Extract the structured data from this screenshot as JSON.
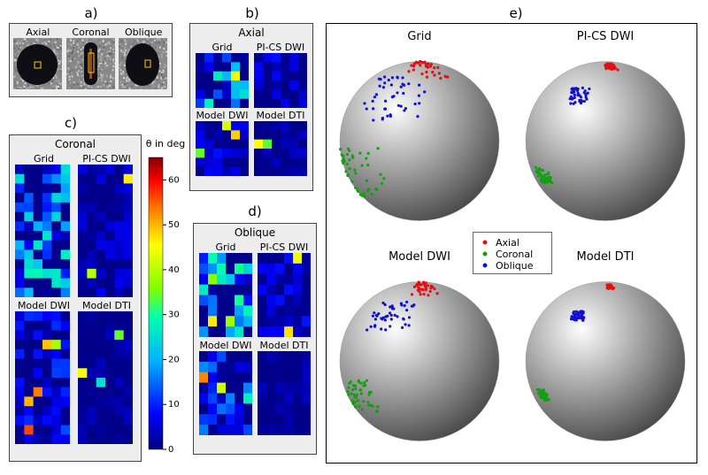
{
  "labels": {
    "a": "a)",
    "b": "b)",
    "c": "c)",
    "d": "d)",
    "e": "e)"
  },
  "panel_a": {
    "titles": [
      "Axial",
      "Coronal",
      "Oblique"
    ],
    "bg": "#888888",
    "disc_fill": "#0e0e14",
    "roi_stroke": "#ffcc00"
  },
  "colormap": {
    "title": "θ in deg",
    "stops": [
      {
        "p": 0.0,
        "c": "#00007f"
      },
      {
        "p": 0.12,
        "c": "#0000ff"
      },
      {
        "p": 0.3,
        "c": "#00b0ff"
      },
      {
        "p": 0.45,
        "c": "#00ffb0"
      },
      {
        "p": 0.55,
        "c": "#80ff00"
      },
      {
        "p": 0.7,
        "c": "#ffff00"
      },
      {
        "p": 0.82,
        "c": "#ff8000"
      },
      {
        "p": 0.92,
        "c": "#ff0000"
      },
      {
        "p": 1.0,
        "c": "#7f0000"
      }
    ],
    "tmin": 0,
    "tmax": 65,
    "ticks": [
      0,
      10,
      20,
      30,
      40,
      50,
      60
    ]
  },
  "panel_b": {
    "title": "Axial",
    "rows": 6,
    "cols": 6,
    "subpanels": [
      {
        "name": "Grid",
        "scale": 1.0,
        "noise": 0.4
      },
      {
        "name": "PI-CS DWI",
        "scale": 0.3,
        "noise": 0.1
      },
      {
        "name": "Model DWI",
        "scale": 0.32,
        "noise": 0.1
      },
      {
        "name": "Model DTI",
        "scale": 0.18,
        "noise": 0.05
      }
    ]
  },
  "panel_c": {
    "title": "Coronal",
    "rows": 14,
    "cols": 6,
    "subpanels": [
      {
        "name": "Grid",
        "scale": 0.8,
        "noise": 0.35
      },
      {
        "name": "PI-CS DWI",
        "scale": 0.25,
        "noise": 0.08
      },
      {
        "name": "Model DWI",
        "scale": 0.4,
        "noise": 0.15
      },
      {
        "name": "Model DTI",
        "scale": 0.15,
        "noise": 0.05
      }
    ]
  },
  "panel_d": {
    "title": "Oblique",
    "rows": 8,
    "cols": 6,
    "subpanels": [
      {
        "name": "Grid",
        "scale": 1.3,
        "noise": 0.5
      },
      {
        "name": "PI-CS DWI",
        "scale": 0.35,
        "noise": 0.1
      },
      {
        "name": "Model DWI",
        "scale": 0.55,
        "noise": 0.2
      },
      {
        "name": "Model DTI",
        "scale": 0.15,
        "noise": 0.05
      }
    ]
  },
  "panel_e": {
    "titles": [
      "Grid",
      "PI-CS DWI",
      "Model DWI",
      "Model DTI"
    ],
    "spreads": [
      1.0,
      0.35,
      0.7,
      0.22
    ],
    "clusters": [
      {
        "label": "Axial",
        "color": "#e01010",
        "lon0": 10,
        "lat0": 70,
        "n": 35
      },
      {
        "label": "Coronal",
        "color": "#10a010",
        "lon0": -60,
        "lat0": -25,
        "n": 45
      },
      {
        "label": "Oblique",
        "color": "#1010d0",
        "lon0": -25,
        "lat0": 35,
        "n": 45
      }
    ],
    "sphere_bg_light": "#fdfdfd",
    "sphere_bg_dark": "#4a4a4a"
  }
}
